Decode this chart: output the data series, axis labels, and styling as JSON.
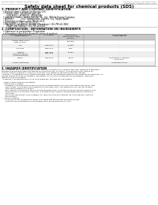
{
  "bg_color": "#ffffff",
  "header_left": "Product Name: Lithium Ion Battery Cell",
  "header_right_line1": "Document Control: SPS-SDS-00010",
  "header_right_line2": "Established / Revision: Dec.7.2010",
  "title": "Safety data sheet for chemical products (SDS)",
  "section1_title": "1. PRODUCT AND COMPANY IDENTIFICATION",
  "section1_lines": [
    "  • Product name: Lithium Ion Battery Cell",
    "  • Product code: Cylindrical-type cell",
    "       (UR18650J, UR18650Z, UR18650A)",
    "  • Company name:   Sanyo Electric Co., Ltd.  Mobile Energy Company",
    "  • Address:          2001  Kamikosaka, Sumoto City, Hyogo, Japan",
    "  • Telephone number:  +81-799-26-4111",
    "  • Fax number:  +81-799-26-4123",
    "  • Emergency telephone number (Weekdays) +81-799-26-3662",
    "       (Night and holiday) +81-799-26-6101"
  ],
  "section2_title": "2. COMPOSITION / INFORMATION ON INGREDIENTS",
  "section2_lines": [
    "  • Substance or preparation: Preparation",
    "  • Information about the chemical nature of product:"
  ],
  "table_col_headers": [
    "Common chemical name /\nGeneric name",
    "CAS number",
    "Concentration /\nConcentration range\n(50-60%)",
    "Classification and\nhazard labeling"
  ],
  "table_rows": [
    [
      "Lithium cobalt oxide\n(LiMn-Co-NiO2)",
      "-",
      "(50-60%)",
      "-"
    ],
    [
      "Iron",
      "7439-89-6",
      "16-25%",
      "-"
    ],
    [
      "Aluminum",
      "7429-90-5",
      "2-6%",
      "-"
    ],
    [
      "Graphite\n(Natural graphite)\n(Artificial graphite)",
      "7782-42-5\n7782-42-5",
      "10-25%",
      "-"
    ],
    [
      "Copper",
      "7440-50-8",
      "5-15%",
      "Sensitization of the skin\ngroup No.2"
    ],
    [
      "Organic electrolyte",
      "-",
      "10-20%",
      "Inflammable liquid"
    ]
  ],
  "section3_title": "3. HAZARDS IDENTIFICATION",
  "section3_paragraphs": [
    "For this battery cell, chemical materials are stored in a hermetically-sealed metal case, designed to withstand",
    "temperatures and pressures encountered during normal use. As a result, during normal use, there is no",
    "physical danger of ignition or explosion and there is no danger of hazardous materials leakage.",
    "  However, if exposed to a fire, added mechanical shocks, decomposed, where electro-chemical dry reactions use,",
    "the gas release vent can be operated. The battery cell case will be breached of fire-patterns. Hazardous",
    "materials may be released.",
    "  Moreover, if heated strongly by the surrounding fire, acid gas may be emitted.",
    "",
    "  • Most important hazard and effects:",
    "    Human health effects:",
    "      Inhalation: The release of the electrolyte has an anaesthesia action and stimulates a respiratory tract.",
    "      Skin contact: The release of the electrolyte stimulates a skin. The electrolyte skin contact causes a",
    "      sore and stimulation on the skin.",
    "      Eye contact: The release of the electrolyte stimulates eyes. The electrolyte eye contact causes a sore",
    "      and stimulation on the eye. Especially, a substance that causes a strong inflammation of the eye is",
    "      contained.",
    "      Environmental effects: Since a battery cell remains in the environment, do not throw out it into the",
    "      environment.",
    "  • Specific hazards:",
    "      If the electrolyte contacts with water, it will generate detrimental hydrogen fluoride.",
    "      Since the liquid electrolyte is inflammable liquid, do not bring close to fire."
  ]
}
